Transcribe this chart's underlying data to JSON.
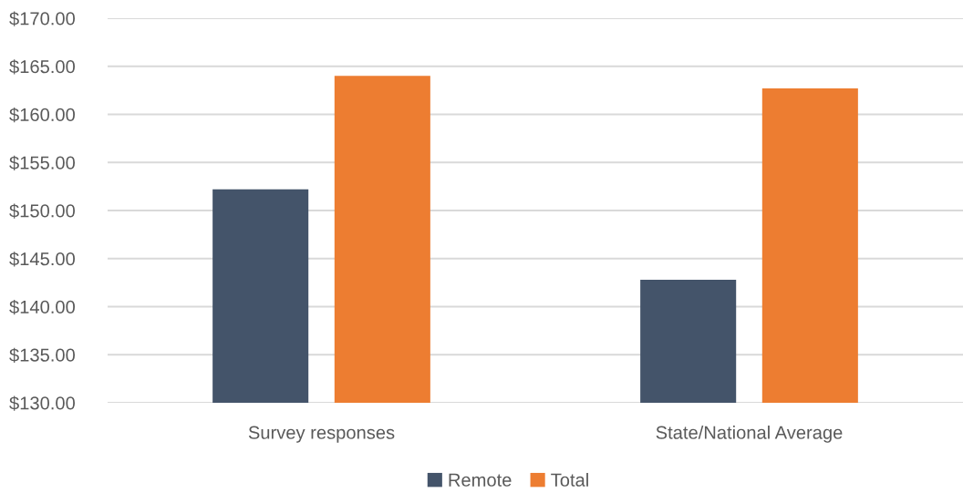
{
  "chart_data": {
    "type": "bar",
    "categories": [
      "Survey responses",
      "State/National Average"
    ],
    "series": [
      {
        "name": "Remote",
        "color": "#44546a",
        "values": [
          152.2,
          142.8
        ]
      },
      {
        "name": "Total",
        "color": "#ed7d31",
        "values": [
          164.0,
          162.7
        ]
      }
    ],
    "ylim": [
      130,
      170
    ],
    "yticks": [
      {
        "value": 130,
        "label": "$130.00"
      },
      {
        "value": 135,
        "label": "$135.00"
      },
      {
        "value": 140,
        "label": "$140.00"
      },
      {
        "value": 145,
        "label": "$145.00"
      },
      {
        "value": 150,
        "label": "$150.00"
      },
      {
        "value": 155,
        "label": "$155.00"
      },
      {
        "value": 160,
        "label": "$160.00"
      },
      {
        "value": 165,
        "label": "$165.00"
      },
      {
        "value": 170,
        "label": "$170.00"
      }
    ],
    "grid": "y",
    "legend": "bottom"
  }
}
